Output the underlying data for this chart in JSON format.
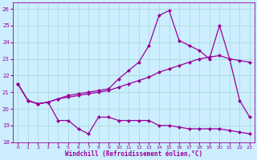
{
  "xlabel": "Windchill (Refroidissement éolien,°C)",
  "background_color": "#cceeff",
  "grid_color": "#aadddd",
  "line_color": "#990099",
  "xlim": [
    -0.5,
    23.5
  ],
  "ylim": [
    18,
    26.4
  ],
  "yticks": [
    18,
    19,
    20,
    21,
    22,
    23,
    24,
    25,
    26
  ],
  "xticks": [
    0,
    1,
    2,
    3,
    4,
    5,
    6,
    7,
    8,
    9,
    10,
    11,
    12,
    13,
    14,
    15,
    16,
    17,
    18,
    19,
    20,
    21,
    22,
    23
  ],
  "line1_x": [
    0,
    1,
    2,
    3,
    4,
    5,
    6,
    7,
    8,
    9,
    10,
    11,
    12,
    13,
    14,
    15,
    16,
    17,
    18,
    19,
    20,
    21,
    22,
    23
  ],
  "line1_y": [
    21.5,
    20.5,
    20.3,
    20.4,
    20.6,
    20.8,
    20.9,
    21.0,
    21.1,
    21.2,
    21.8,
    22.3,
    22.8,
    23.8,
    25.6,
    25.9,
    24.1,
    23.8,
    23.5,
    23.0,
    25.0,
    23.0,
    20.5,
    19.5
  ],
  "line2_x": [
    0,
    1,
    2,
    3,
    4,
    5,
    6,
    7,
    8,
    9,
    10,
    11,
    12,
    13,
    14,
    15,
    16,
    17,
    18,
    19,
    20,
    21,
    22,
    23
  ],
  "line2_y": [
    21.5,
    20.5,
    20.3,
    20.4,
    20.6,
    20.7,
    20.8,
    20.9,
    21.0,
    21.1,
    21.3,
    21.5,
    21.7,
    21.9,
    22.2,
    22.4,
    22.6,
    22.8,
    23.0,
    23.1,
    23.2,
    23.0,
    22.9,
    22.8
  ],
  "line3_x": [
    0,
    1,
    2,
    3,
    4,
    5,
    6,
    7,
    8,
    9,
    10,
    11,
    12,
    13,
    14,
    15,
    16,
    17,
    18,
    19,
    20,
    21,
    22,
    23
  ],
  "line3_y": [
    21.5,
    20.5,
    20.3,
    20.4,
    19.3,
    19.3,
    18.8,
    18.5,
    19.5,
    19.5,
    19.3,
    19.3,
    19.3,
    19.3,
    19.0,
    19.0,
    18.9,
    18.8,
    18.8,
    18.8,
    18.8,
    18.7,
    18.6,
    18.5
  ]
}
